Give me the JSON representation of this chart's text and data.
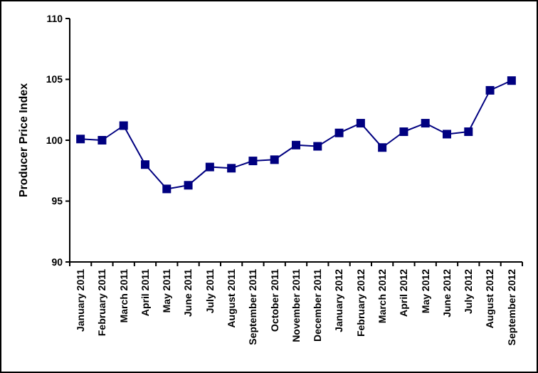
{
  "chart_data": {
    "type": "line",
    "ylabel": "Producer Price Index",
    "categories": [
      "January 2011",
      "February 2011",
      "March 2011",
      "April 2011",
      "May 2011",
      "June 2011",
      "July 2011",
      "August 2011",
      "September 2011",
      "October 2011",
      "November 2011",
      "December 2011",
      "January 2012",
      "February 2012",
      "March 2012",
      "April 2012",
      "May 2012",
      "June 2012",
      "July 2012",
      "August 2012",
      "September 2012"
    ],
    "series": [
      {
        "color": "#000080",
        "values": [
          100.1,
          100.0,
          101.2,
          98.0,
          96.0,
          96.3,
          97.8,
          97.7,
          98.3,
          98.4,
          99.6,
          99.5,
          100.6,
          101.4,
          99.4,
          100.7,
          101.4,
          100.5,
          100.7,
          104.1,
          104.9
        ]
      }
    ],
    "ylim": [
      90,
      110
    ],
    "yticks": [
      90,
      95,
      100,
      105,
      110
    ],
    "grid": false,
    "marker": "square",
    "line_style": "solid"
  }
}
